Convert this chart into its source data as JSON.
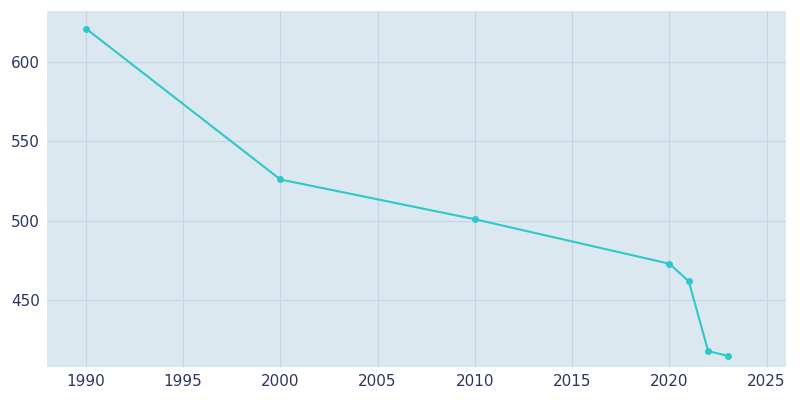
{
  "x": [
    1990,
    2000,
    2010,
    2020,
    2021,
    2022,
    2023
  ],
  "y": [
    621,
    526,
    501,
    473,
    462,
    418,
    415
  ],
  "line_color": "#2ec8c8",
  "marker": "o",
  "marker_size": 4,
  "line_width": 1.5,
  "plot_bg_color": "#dce8f0",
  "fig_bg_color": "#ffffff",
  "grid_color": "#c5d5e4",
  "xlim": [
    1988,
    2026
  ],
  "ylim": [
    408,
    632
  ],
  "xticks": [
    1990,
    1995,
    2000,
    2005,
    2010,
    2015,
    2020,
    2025
  ],
  "yticks": [
    450,
    500,
    550,
    600
  ],
  "tick_label_color": "#2d3561",
  "tick_fontsize": 11,
  "figsize": [
    8.0,
    4.0
  ],
  "dpi": 100
}
